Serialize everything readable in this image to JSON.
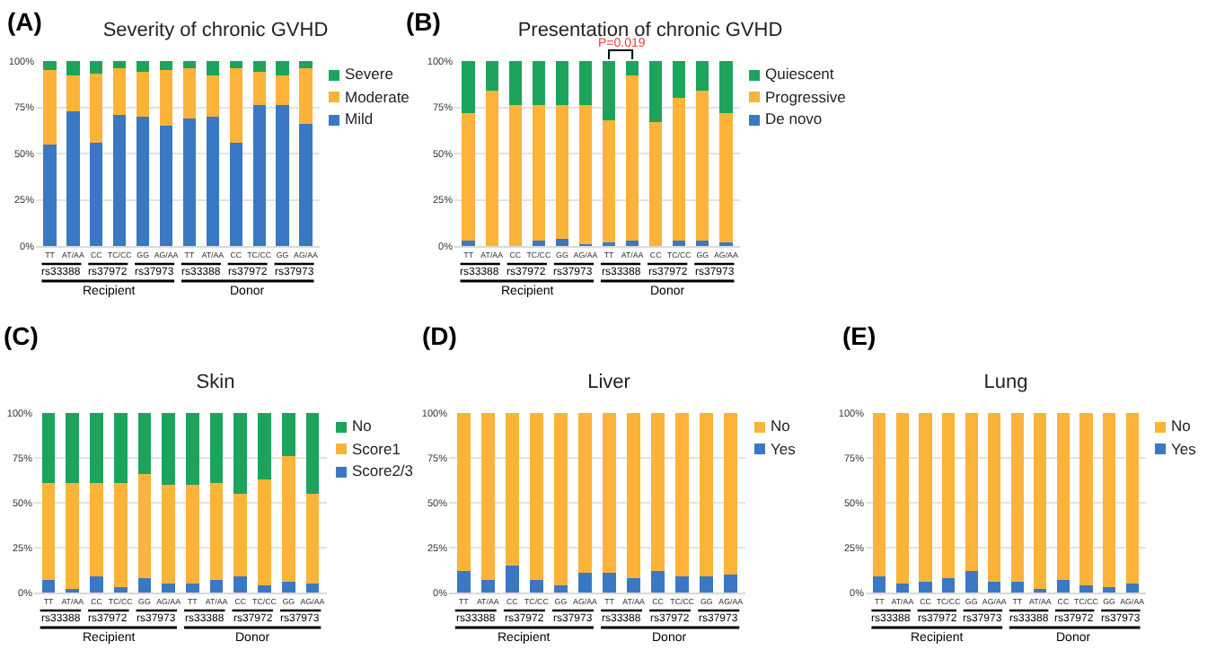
{
  "chart_data": [
    {
      "type": "bar",
      "title": "Severity of chronic GVHD",
      "categories": [
        "TT",
        "AT/AA",
        "CC",
        "TC/CC",
        "GG",
        "AG/AA",
        "TT",
        "AT/AA",
        "CC",
        "TC/CC",
        "GG",
        "AG/AA"
      ],
      "stacked": true,
      "ylim": [
        0,
        100
      ],
      "yticks": [
        {
          "value": 0,
          "label": "0%"
        },
        {
          "value": 25,
          "label": "25%"
        },
        {
          "value": 50,
          "label": "50%"
        },
        {
          "value": 75,
          "label": "75%"
        },
        {
          "value": 100,
          "label": "100%"
        }
      ],
      "grid": "y",
      "legend": "top right",
      "series": [
        {
          "name": "Mild",
          "color": "#3a78c3",
          "values": [
            55,
            73,
            56,
            71,
            70,
            65,
            69,
            70,
            56,
            76,
            76,
            66
          ]
        },
        {
          "name": "Moderate",
          "color": "#fbb33a",
          "values": [
            40,
            19,
            37,
            25,
            24,
            30,
            27,
            22,
            40,
            18,
            16,
            30
          ]
        },
        {
          "name": "Severe",
          "color": "#1ca45c",
          "values": [
            5,
            8,
            7,
            4,
            6,
            5,
            4,
            8,
            4,
            6,
            8,
            4
          ]
        }
      ],
      "annotations": [
        "(A)",
        "rs33388",
        "rs37972",
        "rs37973",
        "rs33388",
        "rs37972",
        "rs37973",
        "Recipient",
        "Donor"
      ]
    },
    {
      "type": "bar",
      "title": "Presentation of chronic GVHD",
      "categories": [
        "TT",
        "AT/AA",
        "CC",
        "TC/CC",
        "GG",
        "AG/AA",
        "TT",
        "AT/AA",
        "CC",
        "TC/CC",
        "GG",
        "AG/AA"
      ],
      "stacked": true,
      "ylim": [
        0,
        100
      ],
      "yticks": [
        {
          "value": 0,
          "label": "0%"
        },
        {
          "value": 25,
          "label": "25%"
        },
        {
          "value": 50,
          "label": "50%"
        },
        {
          "value": 75,
          "label": "75%"
        },
        {
          "value": 100,
          "label": "100%"
        }
      ],
      "grid": "y",
      "legend": "top right",
      "series": [
        {
          "name": "De novo",
          "color": "#3a78c3",
          "values": [
            3,
            0,
            0,
            3,
            4,
            1,
            2,
            3,
            0,
            3,
            3,
            2
          ]
        },
        {
          "name": "Progressive",
          "color": "#fbb33a",
          "values": [
            69,
            84,
            76,
            73,
            72,
            75,
            66,
            89,
            67,
            77,
            81,
            70
          ]
        },
        {
          "name": "Quiescent",
          "color": "#1ca45c",
          "values": [
            28,
            16,
            24,
            24,
            24,
            24,
            32,
            8,
            33,
            20,
            16,
            28
          ]
        }
      ],
      "annotations": [
        "(B)",
        "rs33388",
        "rs37972",
        "rs37973",
        "rs33388",
        "rs37972",
        "rs37973",
        "Recipient",
        "Donor",
        {
          "text": "P=0.019",
          "y": 100
        }
      ]
    },
    {
      "type": "bar",
      "title": "Skin",
      "categories": [
        "TT",
        "AT/AA",
        "CC",
        "TC/CC",
        "GG",
        "AG/AA",
        "TT",
        "AT/AA",
        "CC",
        "TC/CC",
        "GG",
        "AG/AA"
      ],
      "stacked": true,
      "ylim": [
        0,
        100
      ],
      "yticks": [
        {
          "value": 0,
          "label": "0%"
        },
        {
          "value": 25,
          "label": "25%"
        },
        {
          "value": 50,
          "label": "50%"
        },
        {
          "value": 75,
          "label": "75%"
        },
        {
          "value": 100,
          "label": "100%"
        }
      ],
      "grid": "y",
      "legend": "top right",
      "series": [
        {
          "name": "Score2/3",
          "color": "#3a78c3",
          "values": [
            7,
            2,
            9,
            3,
            8,
            5,
            5,
            7,
            9,
            4,
            6,
            5
          ]
        },
        {
          "name": "Score1",
          "color": "#fbb33a",
          "values": [
            54,
            59,
            52,
            58,
            58,
            55,
            55,
            54,
            46,
            59,
            70,
            50
          ]
        },
        {
          "name": "No",
          "color": "#1ca45c",
          "values": [
            39,
            39,
            39,
            39,
            34,
            40,
            40,
            39,
            45,
            37,
            24,
            45
          ]
        }
      ],
      "annotations": [
        "(C)",
        "rs33388",
        "rs37972",
        "rs37973",
        "rs33388",
        "rs37972",
        "rs37973",
        "Recipient",
        "Donor"
      ]
    },
    {
      "type": "bar",
      "title": "Liver",
      "categories": [
        "TT",
        "AT/AA",
        "CC",
        "TC/CC",
        "GG",
        "AG/AA",
        "TT",
        "AT/AA",
        "CC",
        "TC/CC",
        "GG",
        "AG/AA"
      ],
      "stacked": true,
      "ylim": [
        0,
        100
      ],
      "yticks": [
        {
          "value": 0,
          "label": "0%"
        },
        {
          "value": 25,
          "label": "25%"
        },
        {
          "value": 50,
          "label": "50%"
        },
        {
          "value": 75,
          "label": "75%"
        },
        {
          "value": 100,
          "label": "100%"
        }
      ],
      "grid": "y",
      "legend": "top right",
      "series": [
        {
          "name": "Yes",
          "color": "#3a78c3",
          "values": [
            12,
            7,
            15,
            7,
            4,
            11,
            11,
            8,
            12,
            9,
            9,
            10
          ]
        },
        {
          "name": "No",
          "color": "#fbb33a",
          "values": [
            88,
            93,
            85,
            93,
            96,
            89,
            89,
            92,
            88,
            91,
            91,
            90
          ]
        }
      ],
      "annotations": [
        "(D)",
        "rs33388",
        "rs37972",
        "rs37973",
        "rs33388",
        "rs37972",
        "rs37973",
        "Recipient",
        "Donor"
      ]
    },
    {
      "type": "bar",
      "title": "Lung",
      "categories": [
        "TT",
        "AT/AA",
        "CC",
        "TC/CC",
        "GG",
        "AG/AA",
        "TT",
        "AT/AA",
        "CC",
        "TC/CC",
        "GG",
        "AG/AA"
      ],
      "stacked": true,
      "ylim": [
        0,
        100
      ],
      "yticks": [
        {
          "value": 0,
          "label": "0%"
        },
        {
          "value": 25,
          "label": "25%"
        },
        {
          "value": 50,
          "label": "50%"
        },
        {
          "value": 75,
          "label": "75%"
        },
        {
          "value": 100,
          "label": "100%"
        }
      ],
      "grid": "y",
      "legend": "top right",
      "series": [
        {
          "name": "Yes",
          "color": "#3a78c3",
          "values": [
            9,
            5,
            6,
            8,
            12,
            6,
            6,
            2,
            7,
            4,
            3,
            5
          ]
        },
        {
          "name": "No",
          "color": "#fbb33a",
          "values": [
            91,
            95,
            94,
            92,
            88,
            94,
            94,
            98,
            93,
            96,
            97,
            95
          ]
        }
      ],
      "annotations": [
        "(E)",
        "rs33388",
        "rs37972",
        "rs37973",
        "rs33388",
        "rs37972",
        "rs37973",
        "Recipient",
        "Donor"
      ]
    }
  ]
}
